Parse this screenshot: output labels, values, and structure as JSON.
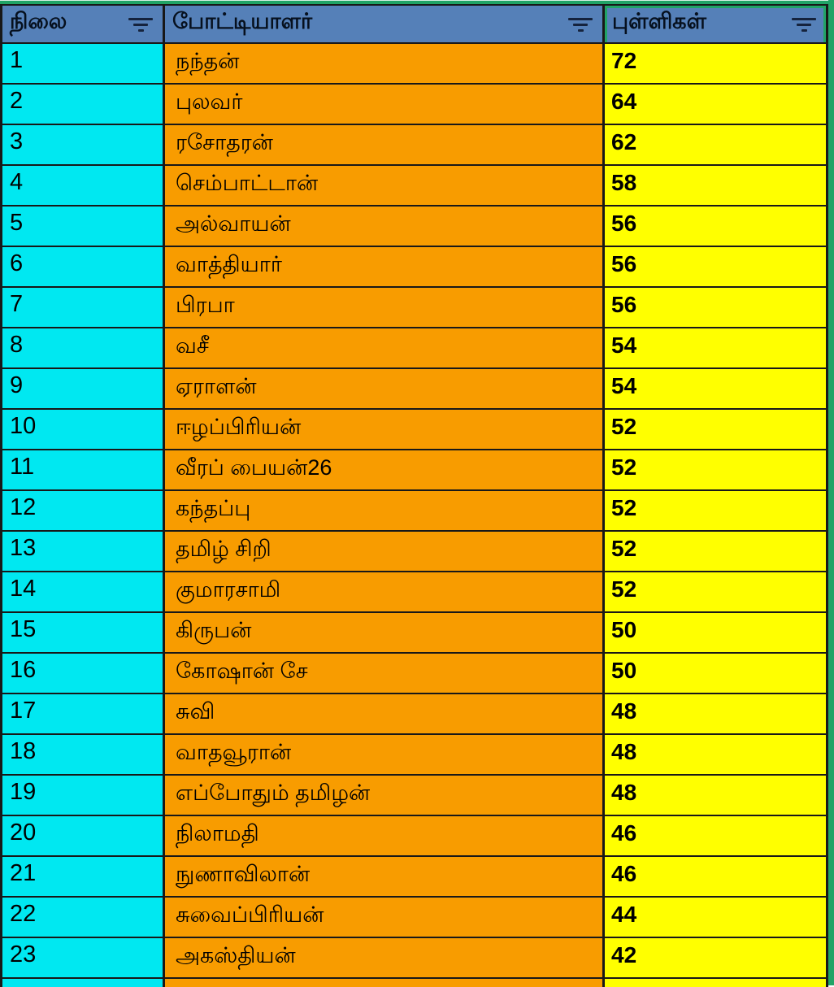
{
  "table": {
    "columns": [
      {
        "label": "நிலை"
      },
      {
        "label": "போட்டியாளர்"
      },
      {
        "label": "புள்ளிகள்"
      }
    ],
    "rows": [
      {
        "rank": "1",
        "name": "நந்தன்",
        "points": "72"
      },
      {
        "rank": "2",
        "name": "புலவர்",
        "points": "64"
      },
      {
        "rank": "3",
        "name": "ரசோதரன்",
        "points": "62"
      },
      {
        "rank": "4",
        "name": "செம்பாட்டான்",
        "points": "58"
      },
      {
        "rank": "5",
        "name": "அல்வாயன்",
        "points": "56"
      },
      {
        "rank": "6",
        "name": "வாத்தியார்",
        "points": "56"
      },
      {
        "rank": "7",
        "name": "பிரபா",
        "points": "56"
      },
      {
        "rank": "8",
        "name": "வசீ",
        "points": "54"
      },
      {
        "rank": "9",
        "name": "ஏராளன்",
        "points": "54"
      },
      {
        "rank": "10",
        "name": "ஈழப்பிரியன்",
        "points": "52"
      },
      {
        "rank": "11",
        "name": "வீரப் பையன்26",
        "points": "52"
      },
      {
        "rank": "12",
        "name": "கந்தப்பு",
        "points": "52"
      },
      {
        "rank": "13",
        "name": "தமிழ் சிறி",
        "points": "52"
      },
      {
        "rank": "14",
        "name": "குமாரசாமி",
        "points": "52"
      },
      {
        "rank": "15",
        "name": "கிருபன்",
        "points": "50"
      },
      {
        "rank": "16",
        "name": "கோஷான் சே",
        "points": "50"
      },
      {
        "rank": "17",
        "name": "சுவி",
        "points": "48"
      },
      {
        "rank": "18",
        "name": "வாதவூரான்",
        "points": "48"
      },
      {
        "rank": "19",
        "name": "எப்போதும் தமிழன்",
        "points": "48"
      },
      {
        "rank": "20",
        "name": "நிலாமதி",
        "points": "46"
      },
      {
        "rank": "21",
        "name": "நுணாவிலான்",
        "points": "46"
      },
      {
        "rank": "22",
        "name": "சுவைப்பிரியன்",
        "points": "44"
      },
      {
        "rank": "23",
        "name": "அகஸ்தியன்",
        "points": "42"
      }
    ]
  },
  "icons": {
    "header_filter": "filter-icon"
  },
  "colors": {
    "header_blue": "#5580B8",
    "rank_cyan": "#00E8F1",
    "name_orange": "#F89C00",
    "points_yellow": "#FFFF00",
    "edge_green": "#21A366",
    "grid_border": "#181818"
  }
}
